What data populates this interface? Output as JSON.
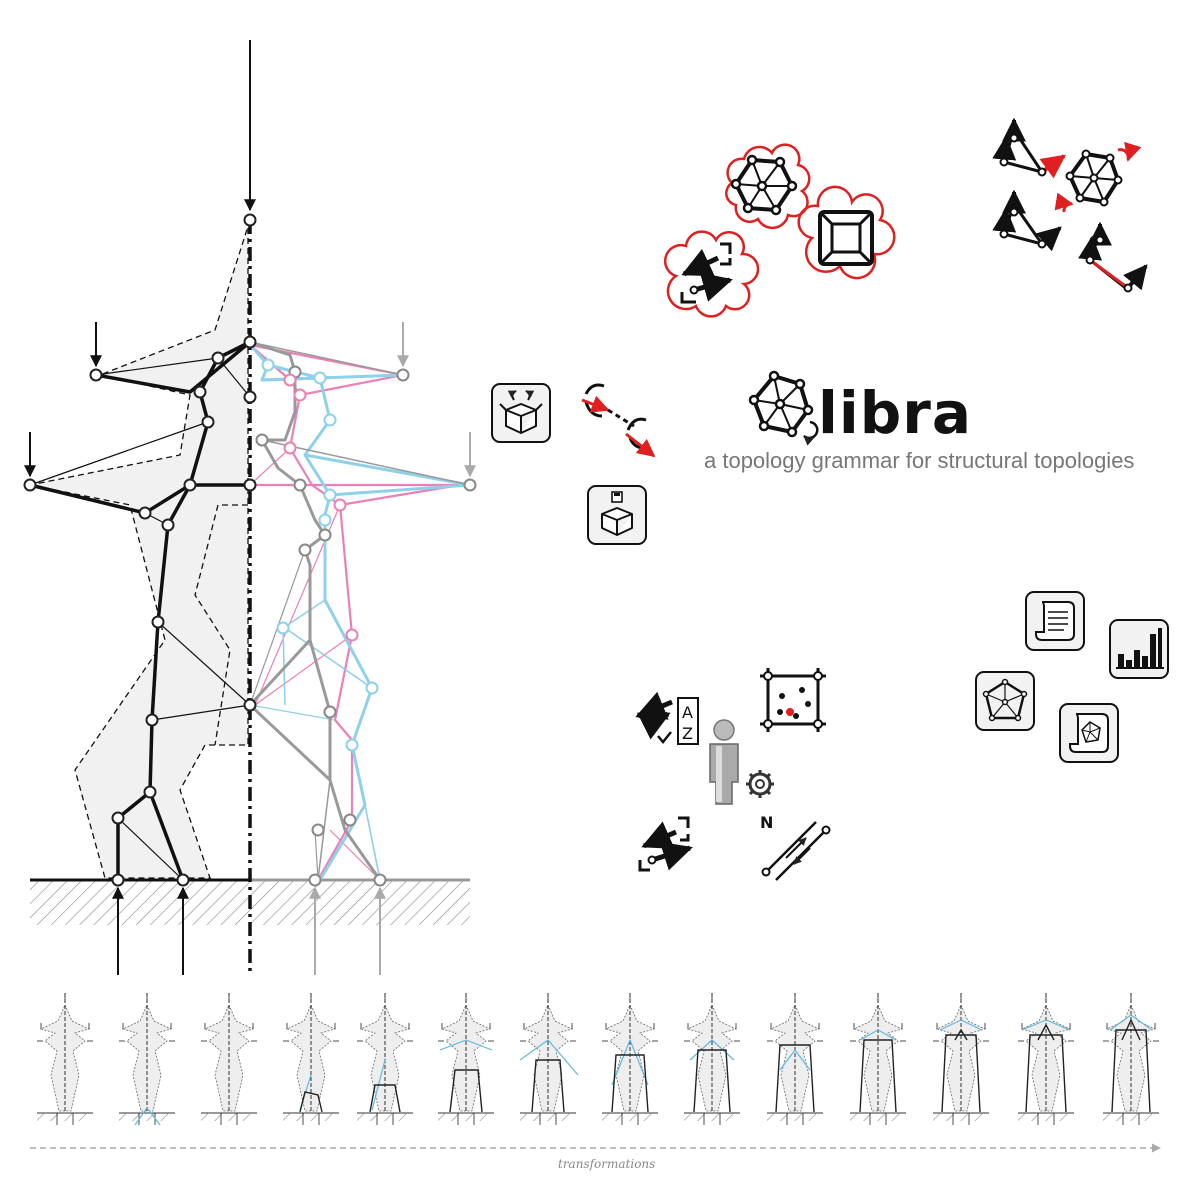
{
  "brand": {
    "title": "libra",
    "subtitle": "a topology grammar for structural topologies"
  },
  "sequence": {
    "axis_label": "transformations",
    "frame_count": 14
  },
  "colors": {
    "ink": "#111111",
    "grey": "#999999",
    "blue": "#8fd0ea",
    "pink": "#ec7fb5",
    "red": "#e02020",
    "fill": "#f1f1f1"
  },
  "icons": {
    "brand_logo": "network-logo-icon",
    "cluster_top": [
      "network-icon",
      "cube-frame-icon",
      "transfer-frames-icon"
    ],
    "cluster_right": [
      "vector-triangle-icon",
      "rotate-network-icon",
      "vector-triangle-pair-icon",
      "vector-triangle-red-icon"
    ],
    "cluster_left": [
      "open-box-icon",
      "branch-transform-icon",
      "save-box-icon"
    ],
    "cluster_bottom": [
      "sort-az-icon",
      "point-grid-icon",
      "user-settings-icon",
      "transfer-frames-icon",
      "parallel-lines-icon"
    ],
    "cluster_far_right": [
      "script-scroll-icon",
      "bar-chart-icon",
      "network-star-icon",
      "scroll-network-icon"
    ]
  }
}
